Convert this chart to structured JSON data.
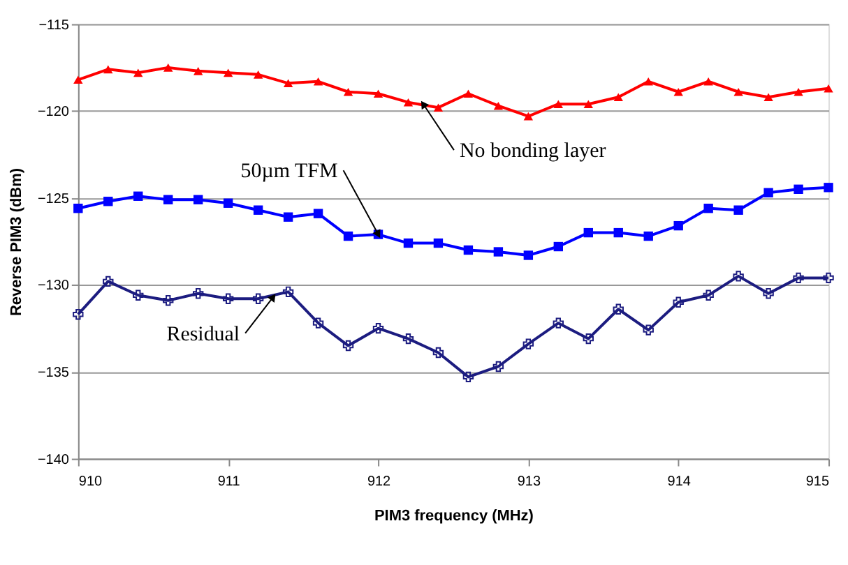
{
  "chart_data": {
    "type": "line",
    "xlabel": "PIM3 frequency (MHz)",
    "ylabel": "Reverse PIM3 (dBm)",
    "x": [
      910,
      910.2,
      910.4,
      910.6,
      910.8,
      911,
      911.2,
      911.4,
      911.6,
      911.8,
      912,
      912.2,
      912.4,
      912.6,
      912.8,
      913,
      913.2,
      913.4,
      913.6,
      913.8,
      914,
      914.2,
      914.4,
      914.6,
      914.8,
      915
    ],
    "series": [
      {
        "color": "#ff0000",
        "marker": "triangle",
        "values": [
          -118.2,
          -117.6,
          -117.8,
          -117.5,
          -117.7,
          -117.8,
          -117.9,
          -118.4,
          -118.3,
          -118.9,
          -119.0,
          -119.5,
          -119.8,
          -119.0,
          -119.7,
          -120.3,
          -119.6,
          -119.6,
          -119.2,
          -118.3,
          -118.9,
          -118.3,
          -118.9,
          -119.2,
          -118.9,
          -118.7
        ]
      },
      {
        "color": "#0000ff",
        "marker": "square",
        "values": [
          -125.6,
          -125.2,
          -124.9,
          -125.1,
          -125.1,
          -125.3,
          -125.7,
          -126.1,
          -125.9,
          -127.2,
          -127.1,
          -127.6,
          -127.6,
          -128.0,
          -128.1,
          -128.3,
          -127.8,
          -127.0,
          -127.0,
          -127.2,
          -126.6,
          -125.6,
          -125.7,
          -124.7,
          -124.5,
          -124.4
        ]
      },
      {
        "color": "#1c1c80",
        "marker": "cross",
        "values": [
          -131.7,
          -129.8,
          -130.6,
          -130.9,
          -130.5,
          -130.8,
          -130.8,
          -130.4,
          -132.2,
          -133.5,
          -132.5,
          -133.1,
          -133.9,
          -135.3,
          -134.7,
          -133.4,
          -132.2,
          -133.1,
          -131.4,
          -132.6,
          -131.0,
          -130.6,
          -129.5,
          -130.5,
          -129.6,
          -129.6
        ]
      }
    ],
    "annotations": [
      {
        "text": "No bonding layer",
        "x": 912.3,
        "y": -119.6
      },
      {
        "text": "50µm TFM",
        "x": 912,
        "y": -127.1
      },
      {
        "text": "Residual",
        "x": 911.3,
        "y": -130.7
      }
    ],
    "xlim": [
      910,
      915
    ],
    "xticks": [
      910,
      911,
      912,
      913,
      914,
      915
    ],
    "ylim": [
      -140,
      -115
    ],
    "yticks": [
      -115,
      -120,
      -125,
      -130,
      -135,
      -140
    ],
    "grid": "y"
  }
}
